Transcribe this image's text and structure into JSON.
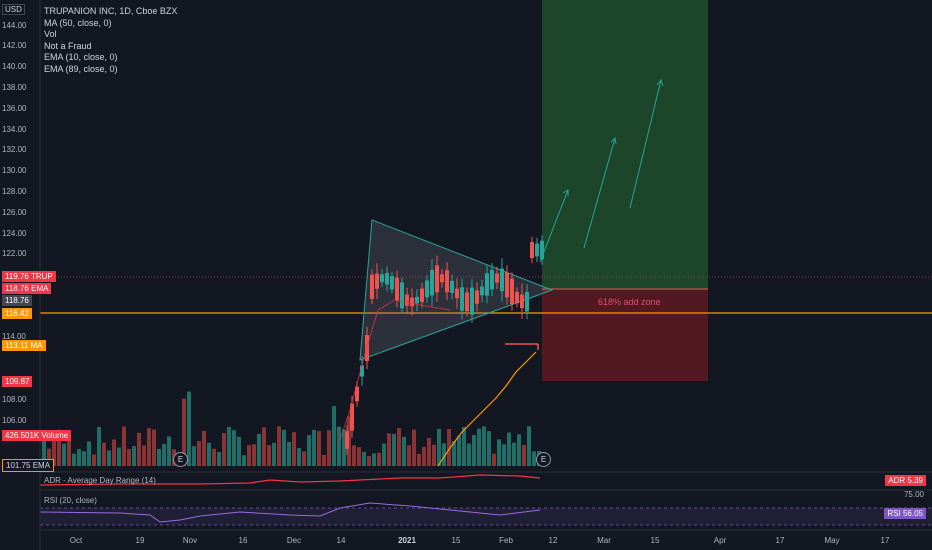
{
  "colors": {
    "background": "#131722",
    "up": "#26a69a",
    "down": "#ef5350",
    "long_zone": "#1f4d2b",
    "short_zone": "#5a1a22",
    "orange": "#ff9800",
    "accent": "#f23645"
  },
  "legend": {
    "symbol": "TRUPANION INC, 1D, Cboe BZX",
    "lines": [
      "MA (50, close, 0)",
      "Vol",
      "Not a Fraud",
      "EMA (10, close, 0)",
      "EMA (89, close, 0)"
    ]
  },
  "currency": "USD",
  "price_axis": [
    "144.00",
    "142.00",
    "140.00",
    "138.00",
    "136.00",
    "134.00",
    "132.00",
    "130.00",
    "128.00",
    "126.00",
    "124.00",
    "122.00",
    "114.00",
    "110.00",
    "108.00",
    "106.00"
  ],
  "price_tags": {
    "trup": {
      "value": "119.76",
      "label": "TRUP"
    },
    "ema1": {
      "value": "118.76",
      "label": "EMA"
    },
    "plain": {
      "value": "118.76"
    },
    "hline": {
      "value": "116.42"
    },
    "ma": {
      "value": "113.11",
      "label": "MA"
    },
    "low": {
      "value": "109.87"
    },
    "volume": {
      "value": "426.501K",
      "label": "Volume"
    },
    "ema2": {
      "value": "101.75",
      "label": "EMA"
    }
  },
  "x_axis": [
    {
      "label": "Oct",
      "bold": false
    },
    {
      "label": "19",
      "bold": false
    },
    {
      "label": "Nov",
      "bold": false
    },
    {
      "label": "16",
      "bold": false
    },
    {
      "label": "Dec",
      "bold": false
    },
    {
      "label": "14",
      "bold": false
    },
    {
      "label": "2021",
      "bold": true
    },
    {
      "label": "15",
      "bold": false
    },
    {
      "label": "Feb",
      "bold": false
    },
    {
      "label": "12",
      "bold": false
    },
    {
      "label": "Mar",
      "bold": false
    },
    {
      "label": "15",
      "bold": false
    },
    {
      "label": "Apr",
      "bold": false
    },
    {
      "label": "17",
      "bold": false
    },
    {
      "label": "May",
      "bold": false
    },
    {
      "label": "17",
      "bold": false
    }
  ],
  "annotations": {
    "zone_label": "618% add zone",
    "earnings_badge": "E"
  },
  "adr": {
    "title": "ADR - Average Day Range (14)",
    "value_label": "ADR",
    "value": "5.39"
  },
  "rsi": {
    "title": "RSI (20, close)",
    "level": "75.00",
    "value_label": "RSI",
    "value": "56.05"
  },
  "chart_data": {
    "type": "candlestick",
    "y_range": [
      101,
      146
    ],
    "target_zone": [
      119.2,
      146
    ],
    "stop_zone": [
      110,
      119.2
    ],
    "horizontal_line": 116.42,
    "last_price": 119.76
  }
}
